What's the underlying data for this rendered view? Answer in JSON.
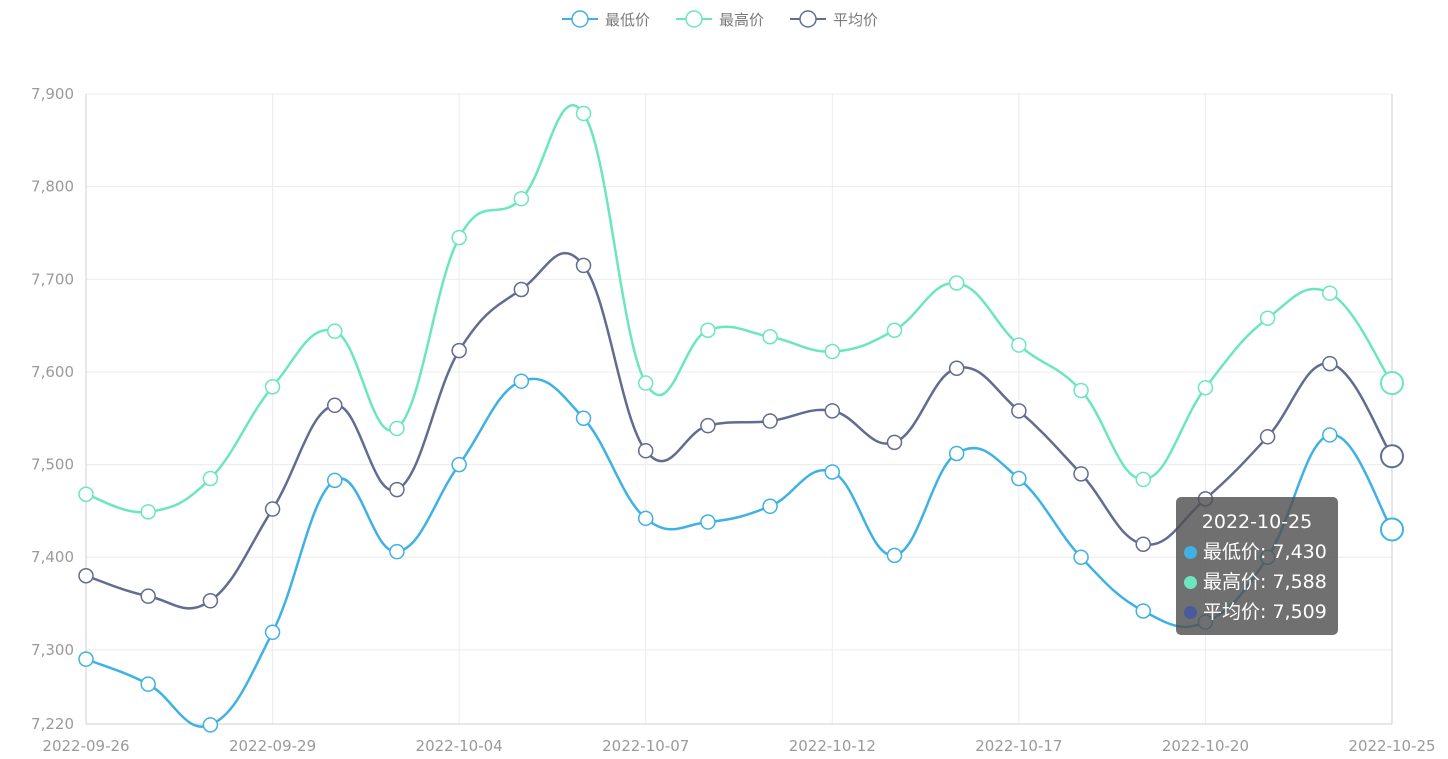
{
  "chart_data": {
    "type": "line",
    "smooth": true,
    "x": [
      "2022-09-26",
      "2022-09-27",
      "2022-09-28",
      "2022-09-29",
      "2022-09-30",
      "2022-10-03",
      "2022-10-04",
      "2022-10-05",
      "2022-10-06",
      "2022-10-07",
      "2022-10-10",
      "2022-10-11",
      "2022-10-12",
      "2022-10-13",
      "2022-10-14",
      "2022-10-17",
      "2022-10-18",
      "2022-10-19",
      "2022-10-20",
      "2022-10-21",
      "2022-10-24",
      "2022-10-25"
    ],
    "xtick_labels": [
      "2022-09-26",
      "2022-09-29",
      "2022-10-04",
      "2022-10-07",
      "2022-10-12",
      "2022-10-17",
      "2022-10-20",
      "2022-10-25"
    ],
    "series": [
      {
        "name": "最低价",
        "color": "#3fb1e3",
        "values": [
          7290,
          7263,
          7219,
          7319,
          7483,
          7406,
          7500,
          7590,
          7550,
          7442,
          7438,
          7455,
          7492,
          7402,
          7512,
          7485,
          7400,
          7342,
          7330,
          7400,
          7532,
          7430
        ]
      },
      {
        "name": "最高价",
        "color": "#6be6c1",
        "values": [
          7468,
          7449,
          7485,
          7584,
          7644,
          7539,
          7745,
          7787,
          7879,
          7588,
          7645,
          7638,
          7622,
          7645,
          7696,
          7629,
          7580,
          7484,
          7583,
          7658,
          7685,
          7588
        ]
      },
      {
        "name": "平均价",
        "color": "#626c91",
        "values": [
          7380,
          7358,
          7353,
          7452,
          7564,
          7473,
          7623,
          7689,
          7715,
          7515,
          7542,
          7547,
          7558,
          7524,
          7604,
          7558,
          7490,
          7414,
          7463,
          7530,
          7609,
          7509
        ]
      }
    ],
    "ylim": [
      7220,
      7900
    ],
    "yticks": [
      7220,
      7300,
      7400,
      7500,
      7600,
      7700,
      7800,
      7900
    ],
    "ytick_labels": [
      "7,220",
      "7,300",
      "7,400",
      "7,500",
      "7,600",
      "7,700",
      "7,800",
      "7,900"
    ],
    "grid": true,
    "legend_position": "top-center"
  },
  "tooltip": {
    "title": "2022-10-25",
    "rows": [
      {
        "label": "最低价: 7,430",
        "color": "#3fb1e3"
      },
      {
        "label": "最高价: 7,588",
        "color": "#6be6c1"
      },
      {
        "label": "平均价: 7,509",
        "color": "#4a5a9a"
      }
    ]
  }
}
